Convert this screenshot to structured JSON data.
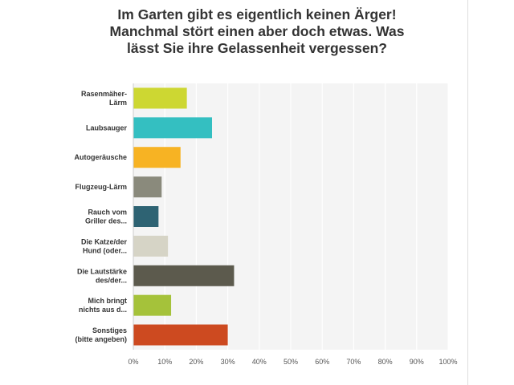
{
  "chart_data": {
    "type": "bar",
    "orientation": "horizontal",
    "title_lines": [
      "Im Garten gibt es eigentlich keinen Ärger!",
      "Manchmal stört einen aber doch etwas. Was",
      "lässt Sie ihre Gelassenheit vergessen?"
    ],
    "categories": [
      [
        "Rasenmäher-",
        "Lärm"
      ],
      [
        "Laubsauger"
      ],
      [
        "Autogeräusche"
      ],
      [
        "Flugzeug-Lärm"
      ],
      [
        "Rauch vom",
        "Griller des..."
      ],
      [
        "Die Katze/der",
        "Hund (oder..."
      ],
      [
        "Die Lautstärke",
        "des/der..."
      ],
      [
        "Mich bringt",
        "nichts aus d..."
      ],
      [
        "Sonstiges",
        "(bitte angeben)"
      ]
    ],
    "values": [
      17,
      25,
      15,
      9,
      8,
      11,
      32,
      12,
      30
    ],
    "colors": [
      "#cdd732",
      "#34bfc1",
      "#f7b323",
      "#8a8a7c",
      "#2e6373",
      "#d6d4c6",
      "#5c5a4d",
      "#a5c23a",
      "#cd4a20"
    ],
    "xlim": [
      0,
      100
    ],
    "x_ticks": [
      "0%",
      "10%",
      "20%",
      "30%",
      "40%",
      "50%",
      "60%",
      "70%",
      "80%",
      "90%",
      "100%"
    ],
    "grid": true,
    "legend": "none",
    "background": "#f4f4f4",
    "grid_color": "#ffffff"
  }
}
